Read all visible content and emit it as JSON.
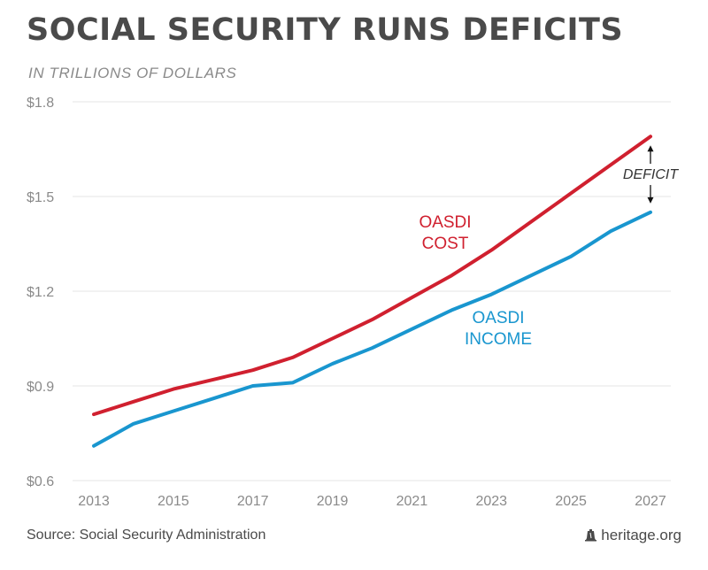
{
  "header": {
    "title": "SOCIAL SECURITY RUNS DEFICITS",
    "subtitle": "IN TRILLIONS OF DOLLARS"
  },
  "footer": {
    "source": "Source: Social Security Administration",
    "brand": "heritage.org",
    "brand_icon": "liberty-bell-icon"
  },
  "colors": {
    "cost": "#d0202f",
    "income": "#1996cf",
    "grid": "#e6e6e6",
    "text": "#4a4a4a",
    "muted": "#8a8a8a"
  },
  "chart_data": {
    "type": "line",
    "x": [
      2013,
      2014,
      2015,
      2016,
      2017,
      2018,
      2019,
      2020,
      2021,
      2022,
      2023,
      2024,
      2025,
      2026,
      2027
    ],
    "series": [
      {
        "name": "OASDI COST",
        "label_lines": [
          "OASDI",
          "COST"
        ],
        "color": "#d0202f",
        "values": [
          0.81,
          0.85,
          0.89,
          0.92,
          0.95,
          0.99,
          1.05,
          1.11,
          1.18,
          1.25,
          1.33,
          1.42,
          1.51,
          1.6,
          1.69
        ]
      },
      {
        "name": "OASDI INCOME",
        "label_lines": [
          "OASDI",
          "INCOME"
        ],
        "color": "#1996cf",
        "values": [
          0.71,
          0.78,
          0.82,
          0.86,
          0.9,
          0.91,
          0.97,
          1.02,
          1.08,
          1.14,
          1.19,
          1.25,
          1.31,
          1.39,
          1.45
        ]
      }
    ],
    "x_ticks": [
      "2013",
      "2015",
      "2017",
      "2019",
      "2021",
      "2023",
      "2025",
      "2027"
    ],
    "y_ticks": [
      {
        "value": 0.6,
        "label": "$0.6"
      },
      {
        "value": 0.9,
        "label": "$0.9"
      },
      {
        "value": 1.2,
        "label": "$1.2"
      },
      {
        "value": 1.5,
        "label": "$1.5"
      },
      {
        "value": 1.8,
        "label": "$1.8"
      }
    ],
    "xlim": [
      2013,
      2027
    ],
    "ylim": [
      0.6,
      1.8
    ],
    "grid": true,
    "annotation": {
      "text": "DEFICIT",
      "x": 2027
    }
  }
}
